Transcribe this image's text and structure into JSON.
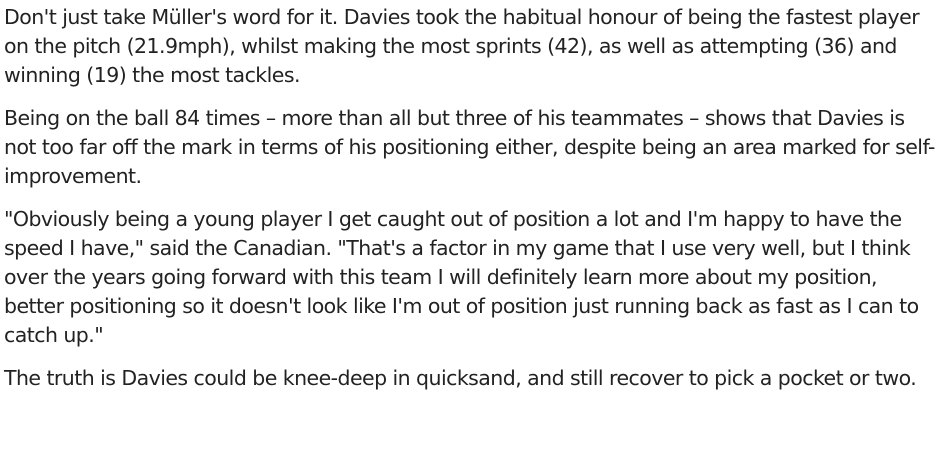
{
  "article": {
    "paragraphs": [
      "Don't just take Müller's word for it. Davies took the habitual honour of being the fastest player on the pitch (21.9mph), whilst making the most sprints (42), as well as attempting (36) and winning (19) the most tackles.",
      "Being on the ball 84 times – more than all but three of his teammates – shows that Davies is not too far off the mark in terms of his positioning either, despite being an area marked for self-improvement.",
      "\"Obviously being a young player I get caught out of position a lot and I'm happy to have the speed I have,\" said the Canadian. \"That's a factor in my game that I use very well, but I think over the years going forward with this team I will definitely learn more about my position, better positioning so it doesn't look like I'm out of position just running back as fast as I can to catch up.\"",
      "The truth is Davies could be knee-deep in quicksand, and still recover to pick a pocket or two."
    ]
  }
}
